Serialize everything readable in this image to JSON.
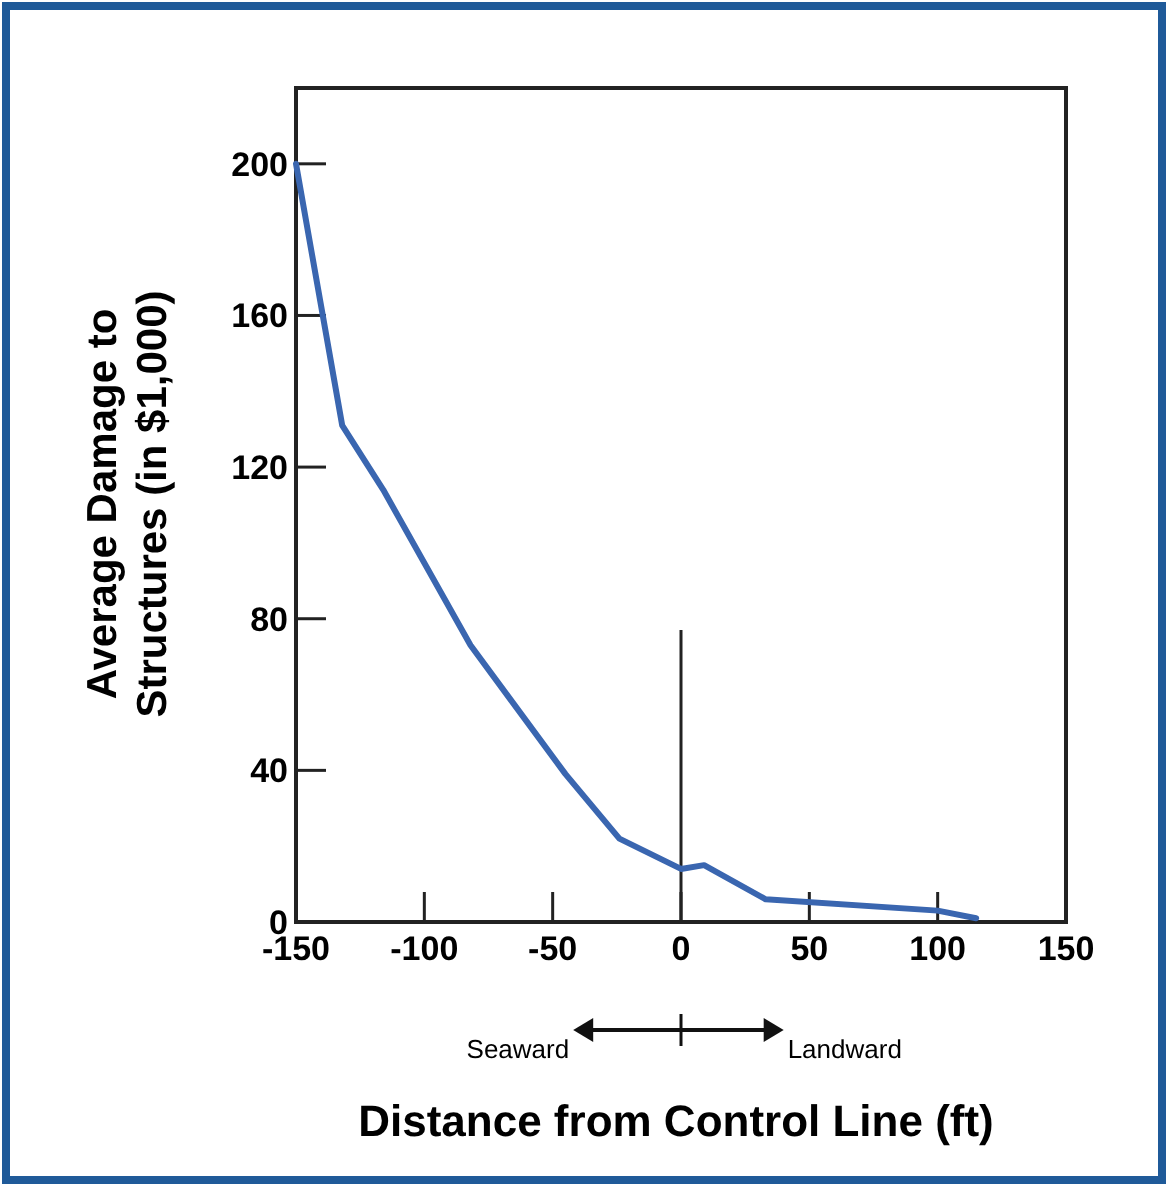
{
  "chart_data": {
    "type": "line",
    "xlabel": "Distance from Control Line (ft)",
    "ylabel": "Average Damage to\nStructures (in $1,000)",
    "series": [
      {
        "color": "#3a66b0",
        "x": [
          -150,
          -132,
          -116,
          -82,
          -45,
          -24,
          0,
          9,
          33,
          100,
          115
        ],
        "values": [
          200,
          131,
          114,
          73,
          39,
          22,
          14,
          15,
          6,
          3,
          1
        ]
      }
    ],
    "ref_lines": [
      {
        "axis": "x",
        "value": 0,
        "color": "#222222"
      }
    ],
    "xlim": [
      -150,
      150
    ],
    "xticks": [
      -150,
      -100,
      -50,
      0,
      50,
      100,
      150
    ],
    "ylim": [
      0,
      220
    ],
    "yticks": [
      0,
      40,
      80,
      120,
      160,
      200
    ],
    "annotations": [
      "Seaward",
      "Landward"
    ],
    "grid": false,
    "marker": "none",
    "line_style": "solid"
  }
}
